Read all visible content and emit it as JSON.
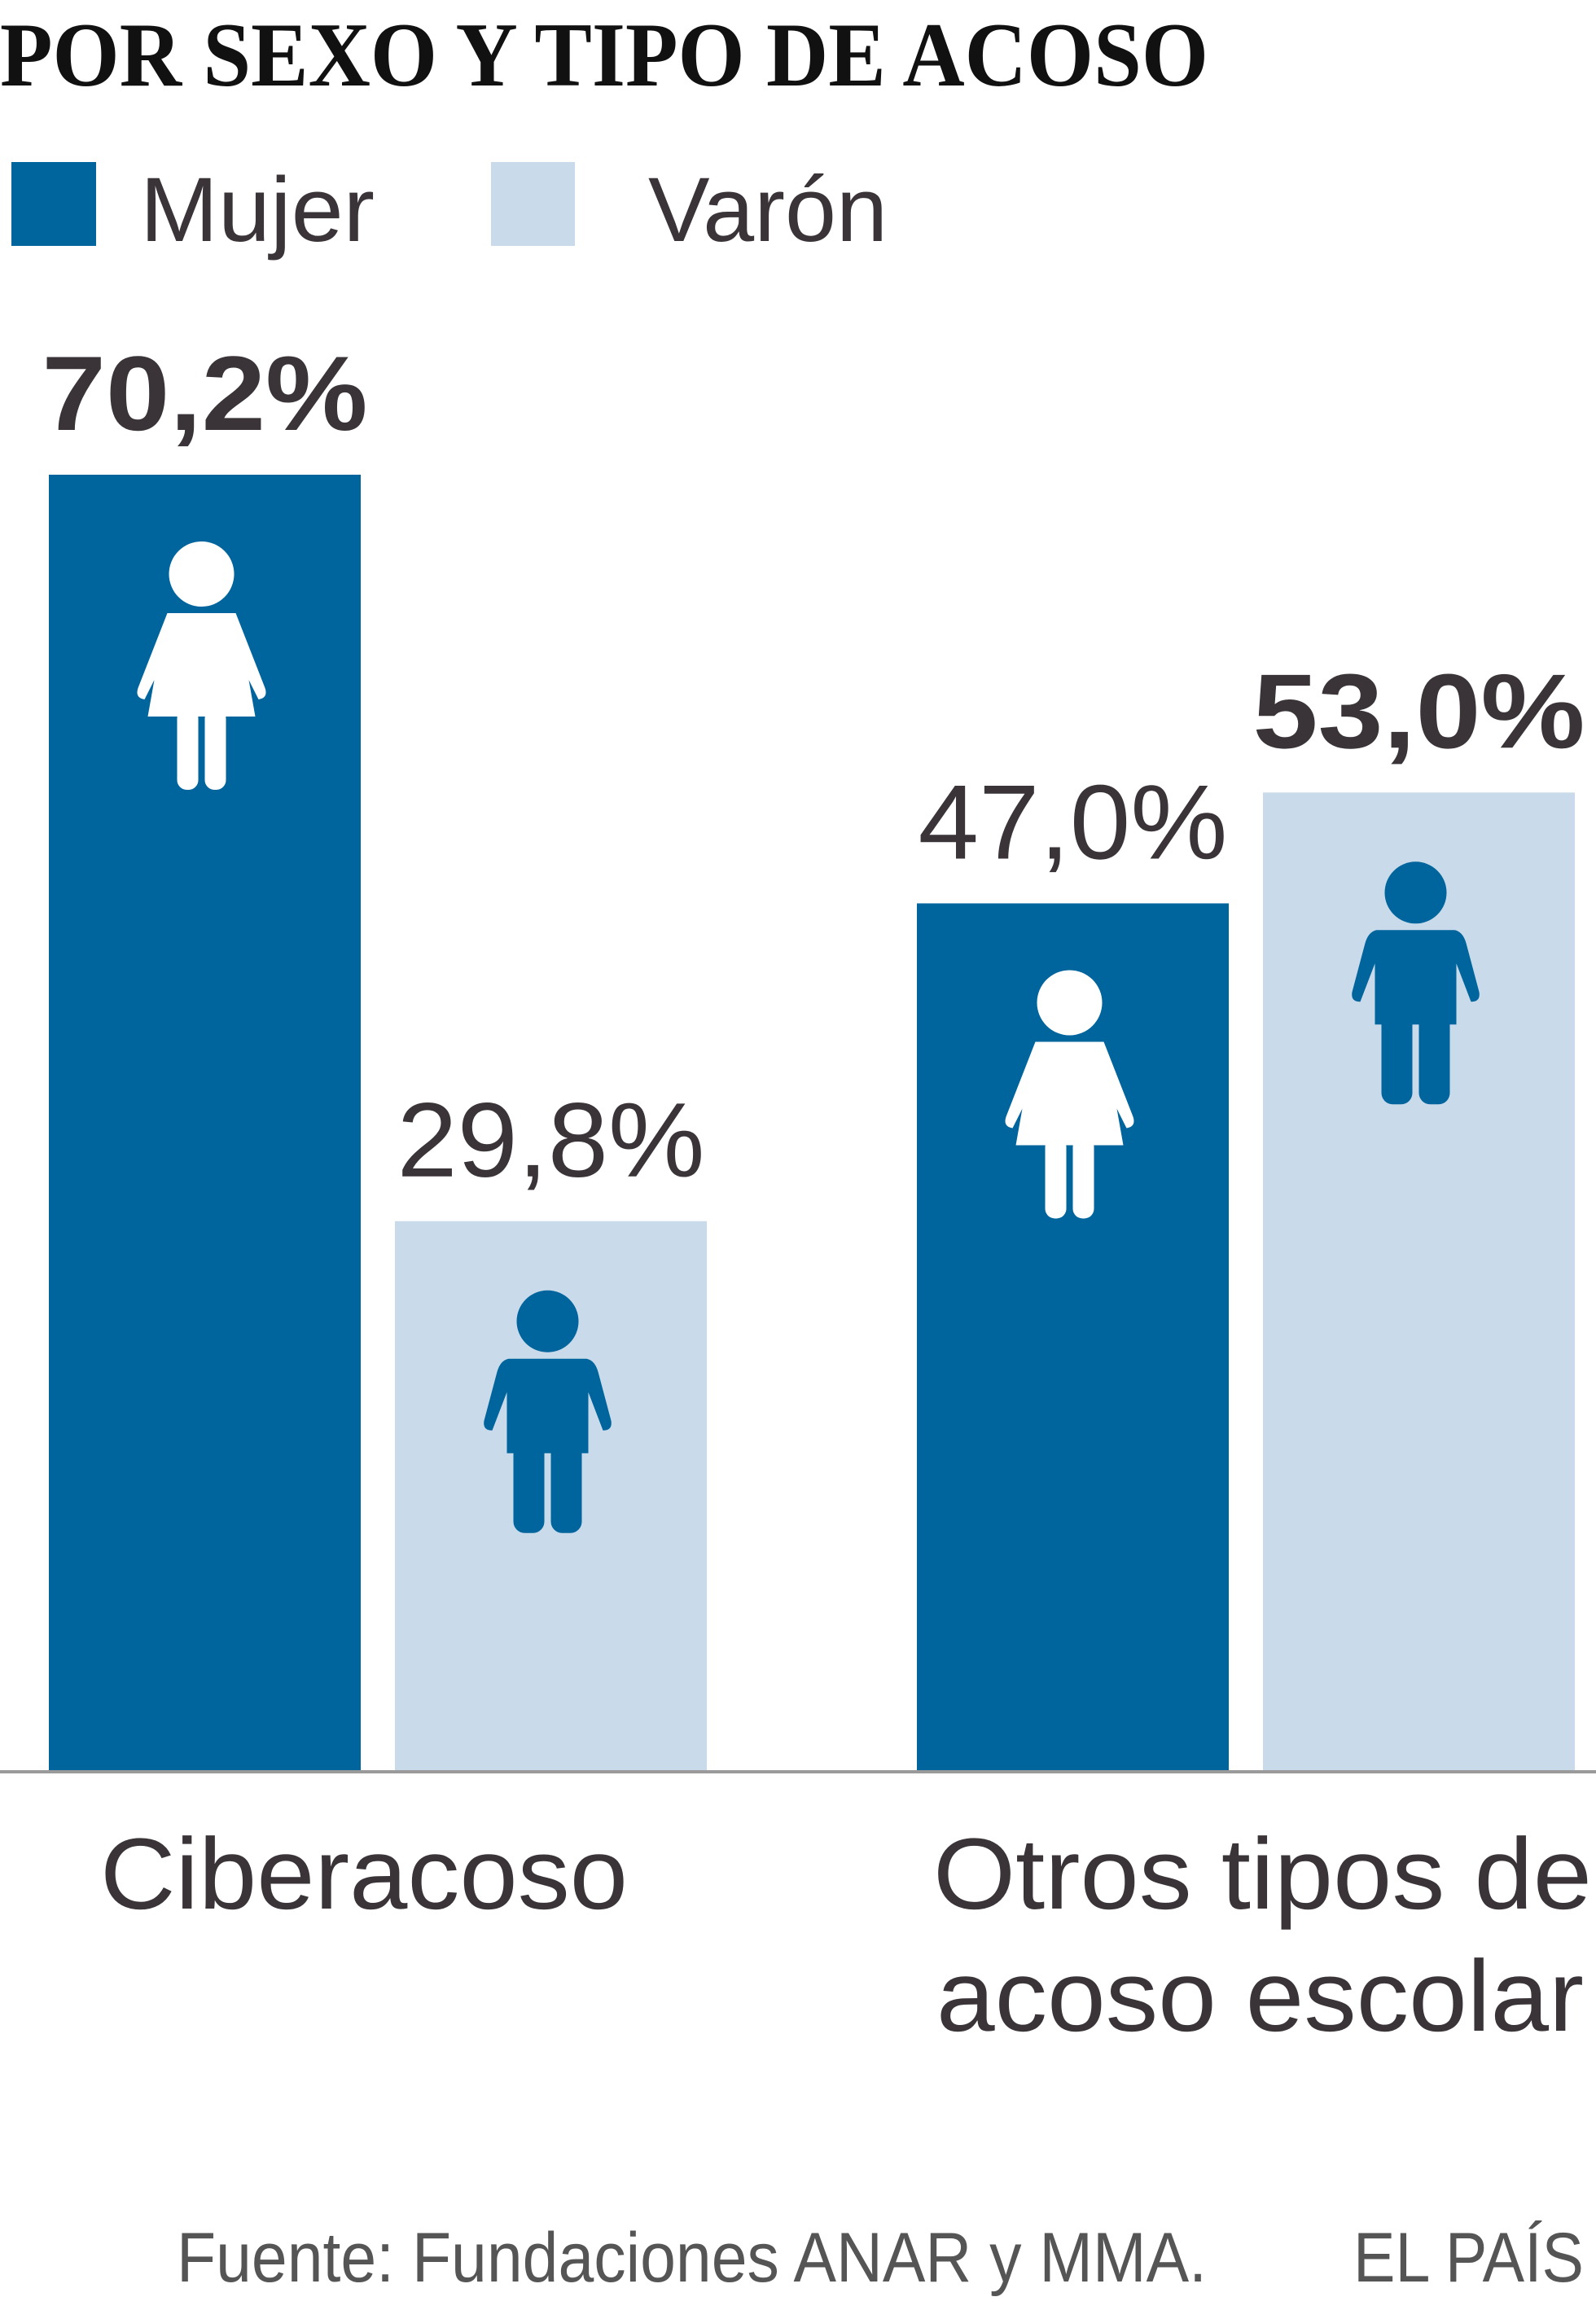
{
  "chart_data": {
    "type": "bar",
    "title": "POR SEXO Y TIPO DE ACOSO",
    "categories": [
      "Ciberacoso",
      "Otros tipos de acoso escolar"
    ],
    "category_lines": [
      [
        "Ciberacoso"
      ],
      [
        "Otros tipos de",
        "acoso escolar"
      ]
    ],
    "series": [
      {
        "name": "Mujer",
        "values": [
          70.2,
          47.0
        ],
        "labels": [
          "70,2%",
          "47,0%"
        ],
        "color": "#00649d",
        "icon": "female-icon"
      },
      {
        "name": "Varón",
        "values": [
          29.8,
          53.0
        ],
        "labels": [
          "29,8%",
          "53,0%"
        ],
        "color": "#c9dbea",
        "icon": "male-icon"
      }
    ],
    "highlight_larger_label": true,
    "ylim": [
      0,
      70.2
    ],
    "grid": false,
    "legend": "top-left",
    "source": "Fuente: Fundaciones ANAR y MMA.",
    "brand": "EL PAÍS"
  }
}
